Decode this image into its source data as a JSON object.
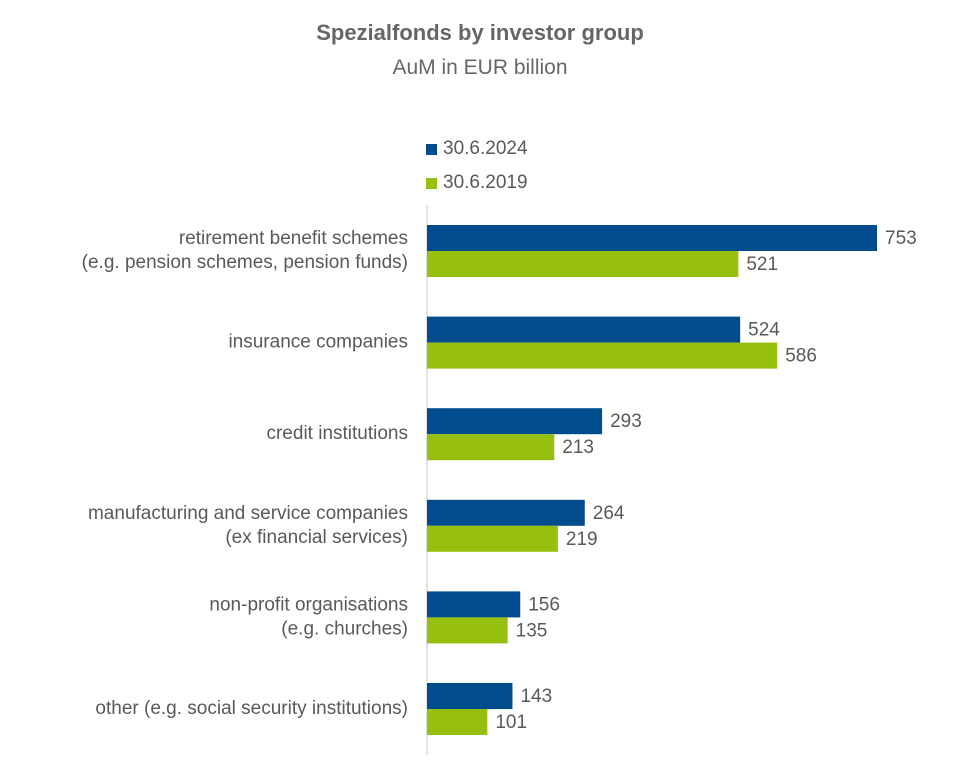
{
  "title": "Spezialfonds by investor group",
  "subtitle": "AuM in EUR billion",
  "colors": {
    "series_2024": "#004C8C",
    "series_2019": "#97BF0D",
    "axis": "#D9D9D9",
    "text": "#595959"
  },
  "chart_data": {
    "type": "bar",
    "orientation": "horizontal",
    "title": "Spezialfonds by investor group",
    "subtitle": "AuM in EUR billion",
    "legend_position": "top",
    "grid": false,
    "xlim": [
      0,
      800
    ],
    "categories": [
      [
        "retirement benefit schemes",
        "(e.g. pension schemes, pension funds)"
      ],
      [
        "insurance companies"
      ],
      [
        "credit institutions"
      ],
      [
        "manufacturing and service companies",
        "(ex financial services)"
      ],
      [
        "non-profit organisations",
        "(e.g. churches)"
      ],
      [
        "other (e.g. social security institutions)"
      ]
    ],
    "series": [
      {
        "name": "30.6.2024",
        "color": "#004C8C",
        "values": [
          753,
          524,
          293,
          264,
          156,
          143
        ]
      },
      {
        "name": "30.6.2019",
        "color": "#97BF0D",
        "values": [
          521,
          586,
          213,
          219,
          135,
          101
        ]
      }
    ]
  }
}
